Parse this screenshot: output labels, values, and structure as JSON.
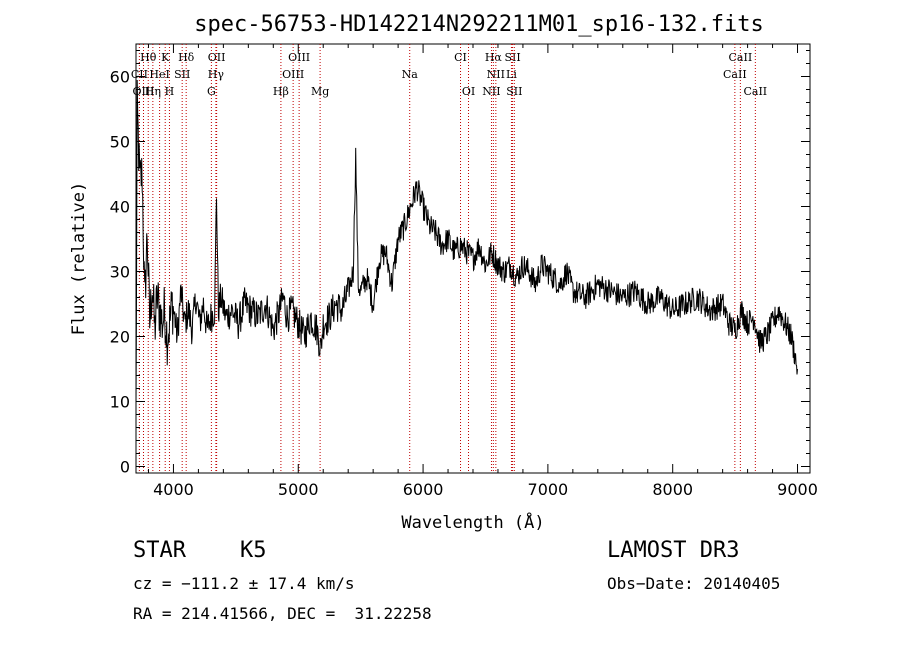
{
  "chart_data": {
    "type": "line",
    "title": "spec-56753-HD142214N292211M01_sp16-132.fits",
    "xlabel": "Wavelength (Å)",
    "ylabel": "Flux (relative)",
    "xlim": [
      3700,
      9100
    ],
    "ylim": [
      -1,
      65
    ],
    "xticks": [
      4000,
      5000,
      6000,
      7000,
      8000,
      9000
    ],
    "yticks": [
      0,
      10,
      20,
      30,
      40,
      50,
      60
    ],
    "series": [
      {
        "name": "spectrum",
        "x": [
          3700,
          3710,
          3730,
          3750,
          3770,
          3790,
          3810,
          3830,
          3850,
          3870,
          3890,
          3910,
          3930,
          3950,
          3970,
          3990,
          4010,
          4030,
          4060,
          4090,
          4120,
          4150,
          4180,
          4210,
          4240,
          4270,
          4300,
          4330,
          4345,
          4360,
          4380,
          4420,
          4470,
          4520,
          4570,
          4620,
          4680,
          4740,
          4800,
          4850,
          4880,
          4910,
          4950,
          5000,
          5050,
          5100,
          5150,
          5180,
          5200,
          5250,
          5300,
          5350,
          5400,
          5440,
          5460,
          5480,
          5500,
          5550,
          5600,
          5650,
          5700,
          5750,
          5800,
          5850,
          5900,
          5950,
          6000,
          6050,
          6100,
          6150,
          6200,
          6250,
          6300,
          6350,
          6400,
          6450,
          6500,
          6550,
          6600,
          6650,
          6700,
          6750,
          6800,
          6850,
          6900,
          6950,
          7000,
          7050,
          7100,
          7150,
          7200,
          7300,
          7400,
          7500,
          7600,
          7700,
          7800,
          7900,
          8000,
          8100,
          8200,
          8300,
          8400,
          8450,
          8500,
          8550,
          8600,
          8650,
          8700,
          8750,
          8800,
          8850,
          8900,
          8950,
          9000
        ],
        "y": [
          8,
          55,
          44,
          45,
          25,
          36,
          22,
          28,
          21,
          26,
          24,
          22,
          24,
          20,
          22,
          25,
          23,
          20,
          27,
          22,
          24,
          21,
          26,
          22,
          25,
          21,
          23,
          24,
          42,
          24,
          26,
          23,
          24,
          22,
          25,
          24,
          23,
          25,
          21,
          24,
          26,
          23,
          24,
          22,
          20,
          23,
          21,
          18,
          22,
          23,
          25,
          24,
          27,
          30,
          48,
          28,
          27,
          29,
          25,
          32,
          33,
          28,
          35,
          37,
          40,
          43,
          40,
          37,
          36,
          34,
          35,
          33,
          34,
          33,
          32,
          34,
          31,
          33,
          31,
          30,
          31,
          29,
          31,
          30,
          28,
          31,
          30,
          29,
          28,
          30,
          27,
          26,
          28,
          27,
          26,
          27,
          25,
          26,
          24,
          25,
          26,
          24,
          25,
          22,
          21,
          24,
          22,
          23,
          19,
          20,
          22,
          24,
          22,
          20,
          15
        ]
      }
    ],
    "line_markers": [
      {
        "label": "Hθ",
        "x": 3798,
        "row": 0
      },
      {
        "label": "K",
        "x": 3934,
        "row": 0
      },
      {
        "label": "Hδ",
        "x": 4102,
        "row": 0
      },
      {
        "label": "OII",
        "x": 4346,
        "row": 0
      },
      {
        "label": "OIII",
        "x": 5007,
        "row": 0
      },
      {
        "label": "CI",
        "x": 6300,
        "row": 0
      },
      {
        "label": "Hα",
        "x": 6563,
        "row": 0
      },
      {
        "label": "SII",
        "x": 6717,
        "row": 0
      },
      {
        "label": "CaII",
        "x": 8542,
        "row": 0
      },
      {
        "label": "CII",
        "x": 3727,
        "row": 1
      },
      {
        "label": "HeI",
        "x": 3889,
        "row": 1
      },
      {
        "label": "SII",
        "x": 4070,
        "row": 1
      },
      {
        "label": "Hγ",
        "x": 4340,
        "row": 1
      },
      {
        "label": "OIII",
        "x": 4959,
        "row": 1
      },
      {
        "label": "Na",
        "x": 5893,
        "row": 1
      },
      {
        "label": "NII",
        "x": 6583,
        "row": 1
      },
      {
        "label": "Li",
        "x": 6708,
        "row": 1
      },
      {
        "label": "CaII",
        "x": 8498,
        "row": 1
      },
      {
        "label": "OIII",
        "x": 3760,
        "row": 2
      },
      {
        "label": "Hη",
        "x": 3835,
        "row": 2
      },
      {
        "label": "H",
        "x": 3968,
        "row": 2
      },
      {
        "label": "G",
        "x": 4304,
        "row": 2
      },
      {
        "label": "Hβ",
        "x": 4861,
        "row": 2
      },
      {
        "label": "Mg",
        "x": 5175,
        "row": 2
      },
      {
        "label": "OI",
        "x": 6364,
        "row": 2
      },
      {
        "label": "NII",
        "x": 6548,
        "row": 2
      },
      {
        "label": "SII",
        "x": 6731,
        "row": 2
      },
      {
        "label": "CaII",
        "x": 8662,
        "row": 2
      }
    ]
  },
  "info": {
    "object_type": "STAR",
    "subclass": "K5",
    "survey": "LAMOST DR3",
    "cz": "cz = −111.2 ± 17.4 km/s",
    "obs_date": "Obs−Date: 20140405",
    "coords": "RA = 214.41566, DEC =  31.22258"
  }
}
